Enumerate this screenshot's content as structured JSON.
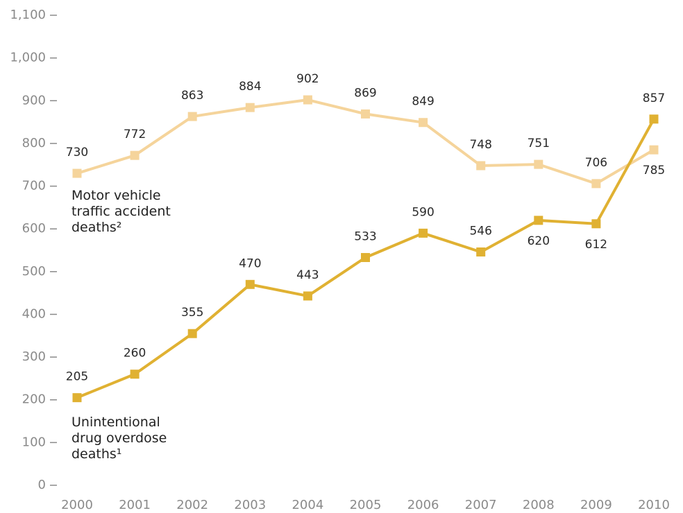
{
  "chart_data": {
    "type": "line",
    "x": [
      2000,
      2001,
      2002,
      2003,
      2004,
      2005,
      2006,
      2007,
      2008,
      2009,
      2010
    ],
    "xlim": [
      2000,
      2010
    ],
    "xticks": [
      2000,
      2001,
      2002,
      2003,
      2004,
      2005,
      2006,
      2007,
      2008,
      2009,
      2010
    ],
    "ylim": [
      0,
      1100
    ],
    "yticks": [
      0,
      100,
      200,
      300,
      400,
      500,
      600,
      700,
      800,
      900,
      {
        "value": 1000,
        "label": "1,000"
      },
      {
        "value": 1100,
        "label": "1,100"
      }
    ],
    "grid": false,
    "series": [
      {
        "name": "Motor vehicle traffic accident deaths²",
        "color": "#f5d49b",
        "values": [
          730,
          772,
          863,
          884,
          902,
          869,
          849,
          748,
          751,
          706,
          785
        ]
      },
      {
        "name": "Unintentional drug overdose deaths¹",
        "color": "#e0b132",
        "values": [
          205,
          260,
          355,
          470,
          443,
          533,
          590,
          546,
          620,
          612,
          857
        ]
      }
    ]
  }
}
